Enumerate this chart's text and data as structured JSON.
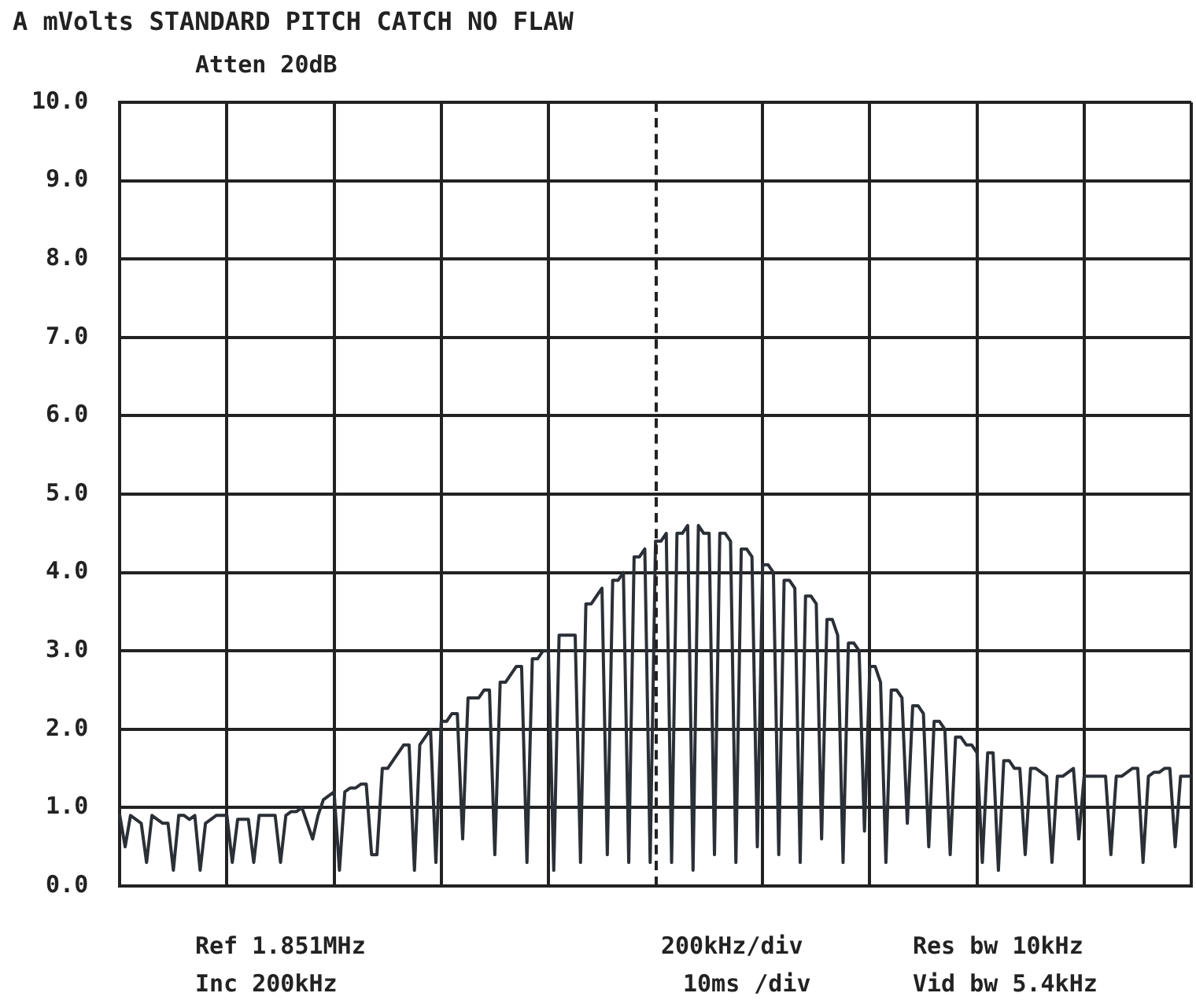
{
  "chart_data": {
    "type": "line",
    "title": "A mVolts STANDARD PITCH CATCH NO FLAW",
    "annotations": [
      "Atten 20dB",
      "Ref 1.851MHz",
      "200kHz/div",
      "Res bw 10kHz",
      "Inc 200kHz",
      "10ms /div",
      "Vid bw 5.4kHz"
    ],
    "categories": [
      null,
      null,
      null,
      null,
      null,
      null,
      null,
      null,
      null,
      null,
      null,
      null,
      null,
      null,
      null,
      null,
      null,
      null,
      null,
      null,
      null,
      null,
      null,
      null,
      null,
      null,
      null,
      null,
      null,
      null,
      null,
      null,
      null,
      null,
      null,
      null,
      null,
      null,
      null,
      null,
      null,
      null,
      null,
      null,
      null,
      null,
      null,
      null,
      null,
      null,
      null,
      null,
      null,
      null,
      null,
      null,
      null,
      null,
      null,
      null,
      null,
      null,
      null,
      null,
      null,
      null,
      null,
      null,
      null,
      null,
      null,
      null,
      null,
      null,
      null,
      null,
      null,
      null,
      null,
      null,
      null,
      null,
      null,
      null,
      null,
      null,
      null,
      null,
      null,
      null,
      null,
      null,
      null,
      null,
      null,
      null,
      null,
      null,
      null,
      null,
      null,
      null,
      null,
      null,
      null,
      null,
      null,
      null,
      null,
      null,
      null,
      null,
      null,
      null,
      null,
      null,
      null,
      null,
      null,
      null,
      null,
      null,
      null,
      null,
      null,
      null,
      null,
      null,
      null,
      null,
      null,
      null,
      null,
      null,
      null,
      null,
      null,
      null,
      null,
      null,
      null,
      null,
      null,
      null,
      null,
      null,
      null,
      null,
      null,
      null,
      null,
      null,
      null,
      null,
      null,
      null,
      null,
      null,
      null,
      null,
      null,
      null,
      null,
      null,
      null,
      null,
      null,
      null,
      null,
      null,
      null,
      null,
      null,
      null,
      null,
      null,
      null,
      null,
      null,
      null,
      null,
      null,
      null,
      null,
      null,
      null,
      null,
      null,
      null,
      null,
      null,
      null,
      null,
      null,
      null,
      null,
      null,
      null,
      null,
      null,
      null
    ],
    "series": [
      {
        "color": "#2b2f36",
        "values": [
          0.9,
          0.5,
          0.9,
          0.85,
          0.8,
          0.3,
          0.9,
          0.85,
          0.8,
          0.8,
          0.2,
          0.9,
          0.9,
          0.85,
          0.9,
          0.2,
          0.8,
          0.85,
          0.9,
          0.9,
          0.9,
          0.3,
          0.85,
          0.85,
          0.85,
          0.3,
          0.9,
          0.9,
          0.9,
          0.9,
          0.3,
          0.9,
          0.95,
          0.95,
          1.0,
          0.8,
          0.6,
          0.9,
          1.1,
          1.15,
          1.2,
          0.2,
          1.2,
          1.25,
          1.25,
          1.3,
          1.3,
          0.4,
          0.4,
          1.5,
          1.5,
          1.6,
          1.7,
          1.8,
          1.8,
          0.2,
          1.8,
          1.9,
          2.0,
          0.3,
          2.1,
          2.1,
          2.2,
          2.2,
          0.6,
          2.4,
          2.4,
          2.4,
          2.5,
          2.5,
          0.4,
          2.6,
          2.6,
          2.7,
          2.8,
          2.8,
          0.3,
          2.9,
          2.9,
          3.0,
          3.0,
          0.2,
          3.2,
          3.2,
          3.2,
          3.2,
          0.3,
          3.6,
          3.6,
          3.7,
          3.8,
          0.4,
          3.9,
          3.9,
          4.0,
          0.3,
          4.2,
          4.2,
          4.3,
          0.3,
          4.4,
          4.4,
          4.5,
          0.3,
          4.5,
          4.5,
          4.6,
          0.2,
          4.6,
          4.5,
          4.5,
          0.4,
          4.5,
          4.5,
          4.4,
          0.3,
          4.3,
          4.3,
          4.2,
          0.5,
          4.1,
          4.1,
          4.0,
          0.4,
          3.9,
          3.9,
          3.8,
          0.3,
          3.7,
          3.7,
          3.6,
          0.6,
          3.4,
          3.4,
          3.2,
          0.3,
          3.1,
          3.1,
          3.0,
          0.7,
          2.8,
          2.8,
          2.6,
          0.3,
          2.5,
          2.5,
          2.4,
          0.8,
          2.3,
          2.3,
          2.2,
          0.5,
          2.1,
          2.1,
          2.0,
          0.4,
          1.9,
          1.9,
          1.8,
          1.8,
          1.7,
          0.3,
          1.7,
          1.7,
          0.2,
          1.6,
          1.6,
          1.5,
          1.5,
          0.4,
          1.5,
          1.5,
          1.45,
          1.4,
          0.3,
          1.4,
          1.4,
          1.45,
          1.5,
          0.6,
          1.4,
          1.4,
          1.4,
          1.4,
          1.4,
          0.4,
          1.4,
          1.4,
          1.45,
          1.5,
          1.5,
          0.3,
          1.4,
          1.45,
          1.45,
          1.5,
          1.5,
          0.5,
          1.4,
          1.4,
          1.4
        ]
      }
    ],
    "ylim": [
      0,
      10
    ],
    "yticks": [
      {
        "value": 0,
        "label": "0.0"
      },
      {
        "value": 1,
        "label": "1.0"
      },
      {
        "value": 2,
        "label": "2.0"
      },
      {
        "value": 3,
        "label": "3.0"
      },
      {
        "value": 4,
        "label": "4.0"
      },
      {
        "value": 5,
        "label": "5.0"
      },
      {
        "value": 6,
        "label": "6.0"
      },
      {
        "value": 7,
        "label": "7.0"
      },
      {
        "value": 8,
        "label": "8.0"
      },
      {
        "value": 9,
        "label": "9.0"
      },
      {
        "value": 10,
        "label": "10.0"
      }
    ],
    "tick_labels": "y",
    "grid": true,
    "marker": "none",
    "line_style": "solid"
  }
}
